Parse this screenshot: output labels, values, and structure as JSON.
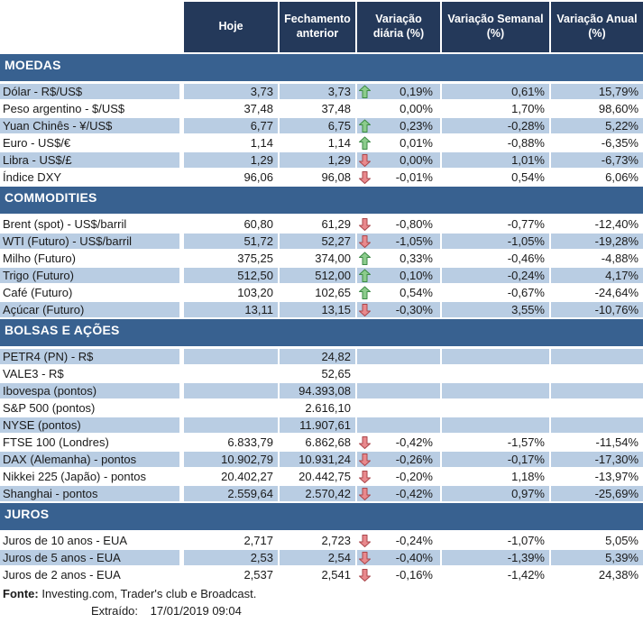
{
  "chart_data": {
    "type": "table",
    "columns": [
      "Hoje",
      "Fechamento anterior",
      "Variação diária (%)",
      "Variação Semanal (%)",
      "Variação Anual (%)"
    ],
    "sections": [
      {
        "title": "MOEDAS",
        "rows": [
          {
            "label": "Dólar - R$/US$",
            "hoje": "3,73",
            "fechamento": "3,73",
            "arrow": "up",
            "var_diaria": "0,19%",
            "var_semanal": "0,61%",
            "var_anual": "15,79%"
          },
          {
            "label": "Peso argentino - $/US$",
            "hoje": "37,48",
            "fechamento": "37,48",
            "arrow": "none",
            "var_diaria": "0,00%",
            "var_semanal": "1,70%",
            "var_anual": "98,60%"
          },
          {
            "label": "Yuan Chinês - ¥/US$",
            "hoje": "6,77",
            "fechamento": "6,75",
            "arrow": "up",
            "var_diaria": "0,23%",
            "var_semanal": "-0,28%",
            "var_anual": "5,22%"
          },
          {
            "label": "Euro - US$/€",
            "hoje": "1,14",
            "fechamento": "1,14",
            "arrow": "up",
            "var_diaria": "0,01%",
            "var_semanal": "-0,88%",
            "var_anual": "-6,35%"
          },
          {
            "label": "Libra - US$/£",
            "hoje": "1,29",
            "fechamento": "1,29",
            "arrow": "down",
            "var_diaria": "0,00%",
            "var_semanal": "1,01%",
            "var_anual": "-6,73%"
          },
          {
            "label": "Índice DXY",
            "hoje": "96,06",
            "fechamento": "96,08",
            "arrow": "down",
            "var_diaria": "-0,01%",
            "var_semanal": "0,54%",
            "var_anual": "6,06%"
          }
        ]
      },
      {
        "title": "COMMODITIES",
        "rows": [
          {
            "label": "Brent (spot) - US$/barril",
            "hoje": "60,80",
            "fechamento": "61,29",
            "arrow": "down",
            "var_diaria": "-0,80%",
            "var_semanal": "-0,77%",
            "var_anual": "-12,40%"
          },
          {
            "label": "WTI (Futuro) - US$/barril",
            "hoje": "51,72",
            "fechamento": "52,27",
            "arrow": "down",
            "var_diaria": "-1,05%",
            "var_semanal": "-1,05%",
            "var_anual": "-19,28%"
          },
          {
            "label": "Milho (Futuro)",
            "hoje": "375,25",
            "fechamento": "374,00",
            "arrow": "up",
            "var_diaria": "0,33%",
            "var_semanal": "-0,46%",
            "var_anual": "-4,88%"
          },
          {
            "label": "Trigo (Futuro)",
            "hoje": "512,50",
            "fechamento": "512,00",
            "arrow": "up",
            "var_diaria": "0,10%",
            "var_semanal": "-0,24%",
            "var_anual": "4,17%"
          },
          {
            "label": "Café (Futuro)",
            "hoje": "103,20",
            "fechamento": "102,65",
            "arrow": "up",
            "var_diaria": "0,54%",
            "var_semanal": "-0,67%",
            "var_anual": "-24,64%"
          },
          {
            "label": "Açúcar (Futuro)",
            "hoje": "13,11",
            "fechamento": "13,15",
            "arrow": "down",
            "var_diaria": "-0,30%",
            "var_semanal": "3,55%",
            "var_anual": "-10,76%"
          }
        ]
      },
      {
        "title": "BOLSAS E AÇÕES",
        "rows": [
          {
            "label": "PETR4 (PN) - R$",
            "hoje": "",
            "fechamento": "24,82",
            "arrow": "none",
            "var_diaria": "",
            "var_semanal": "",
            "var_anual": ""
          },
          {
            "label": "VALE3 - R$",
            "hoje": "",
            "fechamento": "52,65",
            "arrow": "none",
            "var_diaria": "",
            "var_semanal": "",
            "var_anual": ""
          },
          {
            "label": "Ibovespa (pontos)",
            "hoje": "",
            "fechamento": "94.393,08",
            "arrow": "none",
            "var_diaria": "",
            "var_semanal": "",
            "var_anual": ""
          },
          {
            "label": "S&P 500 (pontos)",
            "hoje": "",
            "fechamento": "2.616,10",
            "arrow": "none",
            "var_diaria": "",
            "var_semanal": "",
            "var_anual": ""
          },
          {
            "label": "NYSE (pontos)",
            "hoje": "",
            "fechamento": "11.907,61",
            "arrow": "none",
            "var_diaria": "",
            "var_semanal": "",
            "var_anual": ""
          },
          {
            "label": "FTSE 100 (Londres)",
            "hoje": "6.833,79",
            "fechamento": "6.862,68",
            "arrow": "down",
            "var_diaria": "-0,42%",
            "var_semanal": "-1,57%",
            "var_anual": "-11,54%"
          },
          {
            "label": "DAX (Alemanha) - pontos",
            "hoje": "10.902,79",
            "fechamento": "10.931,24",
            "arrow": "down",
            "var_diaria": "-0,26%",
            "var_semanal": "-0,17%",
            "var_anual": "-17,30%"
          },
          {
            "label": "Nikkei 225 (Japão) - pontos",
            "hoje": "20.402,27",
            "fechamento": "20.442,75",
            "arrow": "down",
            "var_diaria": "-0,20%",
            "var_semanal": "1,18%",
            "var_anual": "-13,97%"
          },
          {
            "label": "Shanghai - pontos",
            "hoje": "2.559,64",
            "fechamento": "2.570,42",
            "arrow": "down",
            "var_diaria": "-0,42%",
            "var_semanal": "0,97%",
            "var_anual": "-25,69%"
          }
        ]
      },
      {
        "title": "JUROS",
        "rows": [
          {
            "label": "Juros de 10 anos - EUA",
            "hoje": "2,717",
            "fechamento": "2,723",
            "arrow": "down",
            "var_diaria": "-0,24%",
            "var_semanal": "-1,07%",
            "var_anual": "5,05%"
          },
          {
            "label": "Juros de 5 anos - EUA",
            "hoje": "2,53",
            "fechamento": "2,54",
            "arrow": "down",
            "var_diaria": "-0,40%",
            "var_semanal": "-1,39%",
            "var_anual": "5,39%"
          },
          {
            "label": "Juros de 2 anos - EUA",
            "hoje": "2,537",
            "fechamento": "2,541",
            "arrow": "down",
            "var_diaria": "-0,16%",
            "var_semanal": "-1,42%",
            "var_anual": "24,38%"
          }
        ]
      }
    ]
  },
  "footer": {
    "fonte_label": "Fonte:",
    "fonte_text": "Investing.com, Trader's club e Broadcast.",
    "extraido_label": "Extraído:",
    "extraido_value": "17/01/2019 09:04"
  },
  "colors": {
    "header_bg": "#24395a",
    "section_bg": "#386190",
    "row_shaded_bg": "#b9cde3",
    "arrow_up_fill": "#8ccc8c",
    "arrow_up_stroke": "#3d8a46",
    "arrow_down_fill": "#e9898d",
    "arrow_down_stroke": "#aa464b"
  }
}
